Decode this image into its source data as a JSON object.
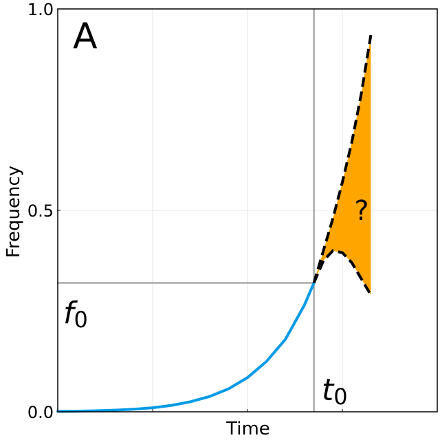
{
  "chart_data": {
    "type": "line",
    "title": "",
    "panel_label": "A",
    "xlabel": "Time",
    "ylabel": "Frequency",
    "xlim": [
      0,
      1
    ],
    "ylim": [
      0,
      1
    ],
    "yticks": [
      {
        "value": 0.0,
        "label": "0.0"
      },
      {
        "value": 0.5,
        "label": "0.5"
      },
      {
        "value": 1.0,
        "label": "1.0"
      }
    ],
    "xgrid": [
      0.25,
      0.5,
      0.75
    ],
    "ygrid": [
      0.5
    ],
    "grid": true,
    "colors": {
      "observed": "#009AE6",
      "uncertainty": "#FFA500",
      "bounds": "#000000",
      "reference": "#AAAAAA"
    },
    "t0": 0.675,
    "f0": 0.32,
    "annotations": {
      "f0_main": "f",
      "f0_sub": "0",
      "t0_main": "t",
      "t0_sub": "0",
      "question": "?"
    },
    "series": {
      "observed": {
        "x": [
          0.0,
          0.05,
          0.1,
          0.15,
          0.2,
          0.25,
          0.3,
          0.35,
          0.4,
          0.45,
          0.5,
          0.55,
          0.6,
          0.65,
          0.675
        ],
        "y": [
          0.001,
          0.0015,
          0.0025,
          0.004,
          0.0065,
          0.01,
          0.016,
          0.025,
          0.038,
          0.057,
          0.085,
          0.125,
          0.18,
          0.265,
          0.32
        ]
      },
      "upper_bound": {
        "x": [
          0.675,
          0.7,
          0.725,
          0.75,
          0.775,
          0.8,
          0.825
        ],
        "y": [
          0.32,
          0.4,
          0.48,
          0.57,
          0.67,
          0.79,
          0.935
        ]
      },
      "lower_bound": {
        "x": [
          0.675,
          0.7,
          0.725,
          0.75,
          0.775,
          0.8,
          0.825
        ],
        "y": [
          0.32,
          0.375,
          0.4,
          0.395,
          0.37,
          0.33,
          0.29
        ]
      }
    }
  }
}
